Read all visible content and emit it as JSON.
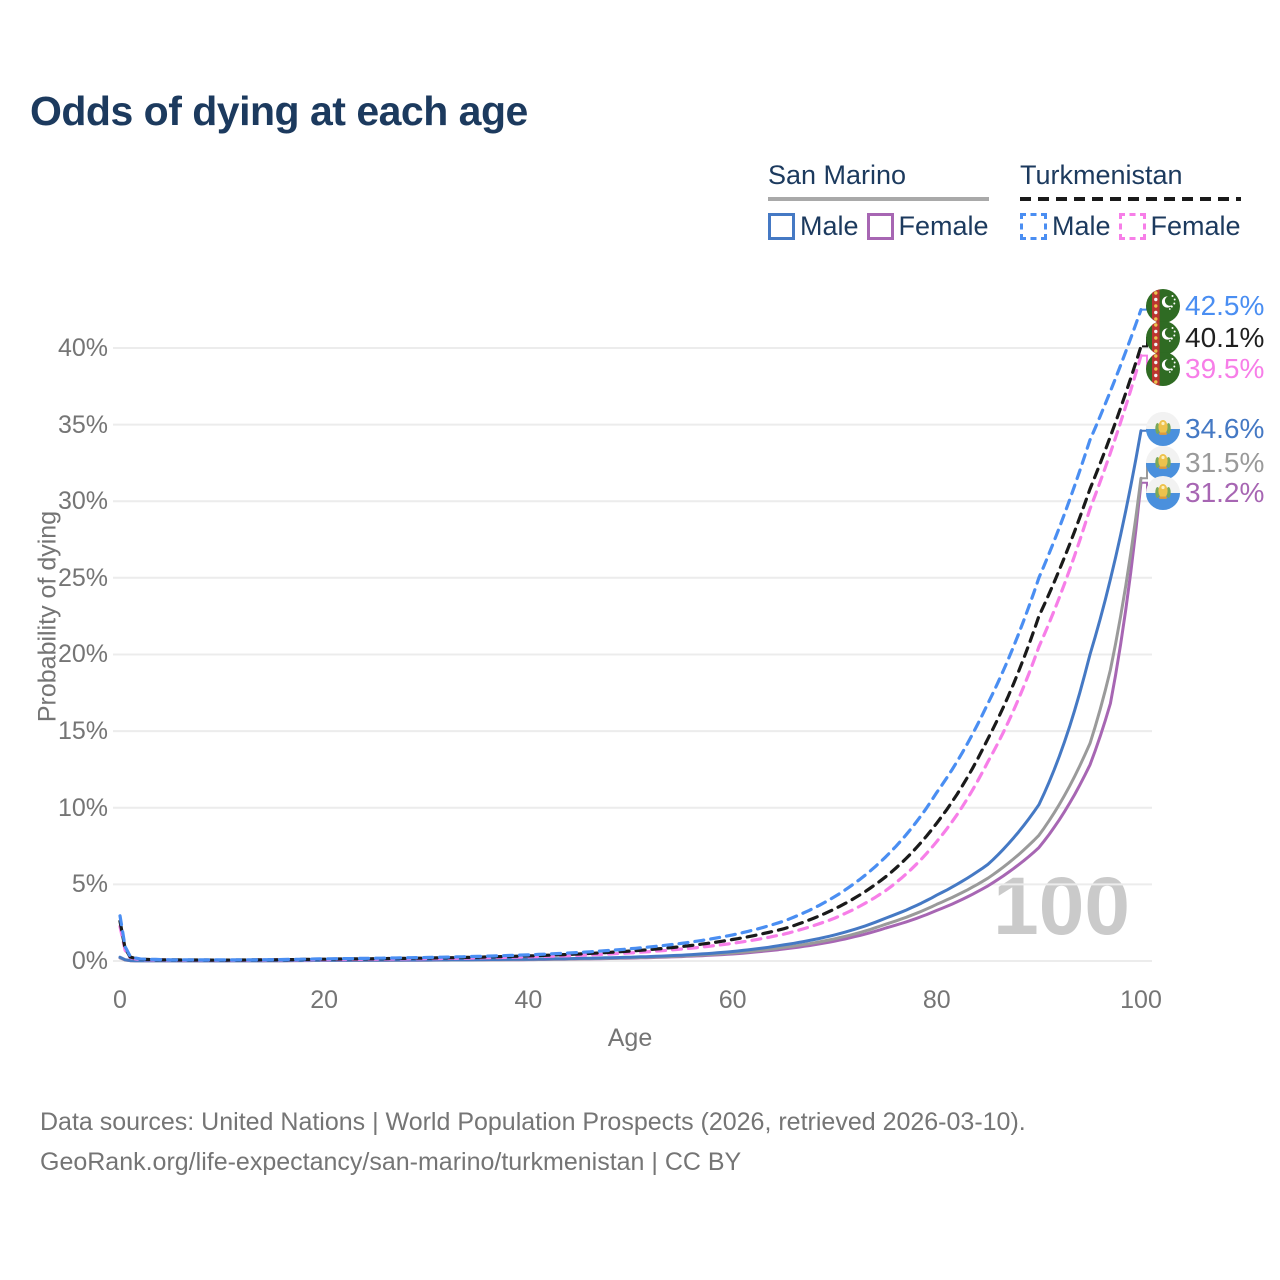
{
  "title": "Odds of dying at each age",
  "legend": {
    "groups": [
      {
        "name": "San Marino",
        "line_style": "solid",
        "rule_color": "#a9a9a9",
        "items": [
          {
            "label": "Male",
            "color": "#4579c4",
            "style": "solid"
          },
          {
            "label": "Female",
            "color": "#a766b3",
            "style": "solid"
          }
        ]
      },
      {
        "name": "Turkmenistan",
        "line_style": "dashed",
        "rule_color": "#1a1a1a",
        "items": [
          {
            "label": "Male",
            "color": "#4a8ef2",
            "style": "dashed"
          },
          {
            "label": "Female",
            "color": "#f77ee8",
            "style": "dashed"
          }
        ]
      }
    ]
  },
  "axes": {
    "y_title": "Probability of dying",
    "x_title": "Age",
    "y_ticks": [
      {
        "label": "0%",
        "value": 0
      },
      {
        "label": "5%",
        "value": 5
      },
      {
        "label": "10%",
        "value": 10
      },
      {
        "label": "15%",
        "value": 15
      },
      {
        "label": "20%",
        "value": 20
      },
      {
        "label": "25%",
        "value": 25
      },
      {
        "label": "30%",
        "value": 30
      },
      {
        "label": "35%",
        "value": 35
      },
      {
        "label": "40%",
        "value": 40
      }
    ],
    "x_ticks": [
      {
        "label": "0",
        "value": 0
      },
      {
        "label": "20",
        "value": 20
      },
      {
        "label": "40",
        "value": 40
      },
      {
        "label": "60",
        "value": 60
      },
      {
        "label": "80",
        "value": 80
      },
      {
        "label": "100",
        "value": 100
      }
    ]
  },
  "watermark": "100",
  "end_labels": [
    {
      "series": "tm_male",
      "value": "42.5%",
      "color": "#4a8ef2",
      "flag": "turkmenistan"
    },
    {
      "series": "tm_total",
      "value": "40.1%",
      "color": "#1f1f1f",
      "flag": "turkmenistan"
    },
    {
      "series": "tm_female",
      "value": "39.5%",
      "color": "#f77ee8",
      "flag": "turkmenistan"
    },
    {
      "series": "sm_male",
      "value": "34.6%",
      "color": "#4579c4",
      "flag": "san-marino"
    },
    {
      "series": "sm_total",
      "value": "31.5%",
      "color": "#9a9a9a",
      "flag": "san-marino"
    },
    {
      "series": "sm_female",
      "value": "31.2%",
      "color": "#a766b3",
      "flag": "san-marino"
    }
  ],
  "footer": {
    "line1": "Data sources: United Nations | World Population Prospects (2026, retrieved 2026-03-10).",
    "line2": "GeoRank.org/life-expectancy/san-marino/turkmenistan | CC BY"
  },
  "chart_data": {
    "type": "line",
    "title": "Odds of dying at each age",
    "xlabel": "Age",
    "ylabel": "Probability of dying",
    "xlim": [
      0,
      100
    ],
    "ylim": [
      0,
      43.5
    ],
    "grid": "horizontal-only",
    "legend_position": "top-right",
    "y_tick_percent": [
      0,
      5,
      10,
      15,
      20,
      25,
      30,
      35,
      40
    ],
    "x_tick_ages": [
      0,
      20,
      40,
      60,
      80,
      100
    ],
    "note": "points are [age, probability_of_dying_percent]; curves interpolated exponentially between anchor points",
    "series": [
      {
        "id": "tm_male",
        "name": "Turkmenistan Male",
        "country": "Turkmenistan",
        "sex": "male",
        "style": "dashed",
        "color": "#4a8ef2",
        "end_value_pct": 42.5,
        "points": [
          [
            0,
            2.95
          ],
          [
            1,
            0.3
          ],
          [
            2,
            0.13
          ],
          [
            5,
            0.08
          ],
          [
            10,
            0.07
          ],
          [
            15,
            0.09
          ],
          [
            20,
            0.14
          ],
          [
            25,
            0.18
          ],
          [
            30,
            0.23
          ],
          [
            35,
            0.3
          ],
          [
            40,
            0.4
          ],
          [
            45,
            0.56
          ],
          [
            50,
            0.8
          ],
          [
            55,
            1.15
          ],
          [
            60,
            1.7
          ],
          [
            65,
            2.6
          ],
          [
            70,
            4.2
          ],
          [
            75,
            6.8
          ],
          [
            80,
            11.0
          ],
          [
            85,
            16.8
          ],
          [
            90,
            25.0
          ],
          [
            95,
            34.0
          ],
          [
            100,
            42.5
          ]
        ]
      },
      {
        "id": "tm_total",
        "name": "Turkmenistan",
        "country": "Turkmenistan",
        "sex": "both",
        "style": "dashed",
        "color": "#1a1a1a",
        "end_value_pct": 40.1,
        "points": [
          [
            0,
            2.6
          ],
          [
            1,
            0.26
          ],
          [
            2,
            0.11
          ],
          [
            5,
            0.07
          ],
          [
            10,
            0.06
          ],
          [
            15,
            0.08
          ],
          [
            20,
            0.12
          ],
          [
            25,
            0.15
          ],
          [
            30,
            0.19
          ],
          [
            35,
            0.25
          ],
          [
            40,
            0.33
          ],
          [
            45,
            0.46
          ],
          [
            50,
            0.65
          ],
          [
            55,
            0.94
          ],
          [
            60,
            1.4
          ],
          [
            65,
            2.1
          ],
          [
            70,
            3.4
          ],
          [
            75,
            5.5
          ],
          [
            80,
            9.0
          ],
          [
            85,
            14.5
          ],
          [
            90,
            22.5
          ],
          [
            95,
            30.8
          ],
          [
            100,
            40.1
          ]
        ]
      },
      {
        "id": "tm_female",
        "name": "Turkmenistan Female",
        "country": "Turkmenistan",
        "sex": "female",
        "style": "dashed",
        "color": "#f77ee8",
        "end_value_pct": 39.5,
        "points": [
          [
            0,
            2.25
          ],
          [
            1,
            0.22
          ],
          [
            2,
            0.09
          ],
          [
            5,
            0.06
          ],
          [
            10,
            0.05
          ],
          [
            15,
            0.07
          ],
          [
            20,
            0.09
          ],
          [
            25,
            0.12
          ],
          [
            30,
            0.15
          ],
          [
            35,
            0.2
          ],
          [
            40,
            0.27
          ],
          [
            45,
            0.37
          ],
          [
            50,
            0.53
          ],
          [
            55,
            0.78
          ],
          [
            60,
            1.15
          ],
          [
            65,
            1.75
          ],
          [
            70,
            2.8
          ],
          [
            75,
            4.6
          ],
          [
            80,
            7.8
          ],
          [
            85,
            13.0
          ],
          [
            90,
            20.5
          ],
          [
            95,
            29.5
          ],
          [
            100,
            39.5
          ]
        ]
      },
      {
        "id": "sm_male",
        "name": "San Marino Male",
        "country": "San Marino",
        "sex": "male",
        "style": "solid",
        "color": "#4579c4",
        "end_value_pct": 34.6,
        "points": [
          [
            0,
            0.25
          ],
          [
            1,
            0.03
          ],
          [
            2,
            0.015
          ],
          [
            5,
            0.012
          ],
          [
            10,
            0.012
          ],
          [
            15,
            0.025
          ],
          [
            20,
            0.05
          ],
          [
            25,
            0.06
          ],
          [
            30,
            0.07
          ],
          [
            35,
            0.09
          ],
          [
            40,
            0.12
          ],
          [
            45,
            0.17
          ],
          [
            50,
            0.25
          ],
          [
            55,
            0.38
          ],
          [
            60,
            0.62
          ],
          [
            65,
            1.05
          ],
          [
            70,
            1.7
          ],
          [
            75,
            2.8
          ],
          [
            80,
            4.3
          ],
          [
            85,
            6.3
          ],
          [
            90,
            10.2
          ],
          [
            95,
            20.0
          ],
          [
            100,
            34.6
          ]
        ]
      },
      {
        "id": "sm_total",
        "name": "San Marino",
        "country": "San Marino",
        "sex": "both",
        "style": "solid",
        "color": "#9a9a9a",
        "end_value_pct": 31.5,
        "points": [
          [
            0,
            0.22
          ],
          [
            1,
            0.025
          ],
          [
            2,
            0.013
          ],
          [
            5,
            0.01
          ],
          [
            10,
            0.01
          ],
          [
            15,
            0.02
          ],
          [
            20,
            0.04
          ],
          [
            25,
            0.05
          ],
          [
            30,
            0.06
          ],
          [
            35,
            0.075
          ],
          [
            40,
            0.1
          ],
          [
            45,
            0.14
          ],
          [
            50,
            0.21
          ],
          [
            55,
            0.32
          ],
          [
            60,
            0.52
          ],
          [
            65,
            0.88
          ],
          [
            70,
            1.45
          ],
          [
            75,
            2.4
          ],
          [
            80,
            3.7
          ],
          [
            85,
            5.4
          ],
          [
            90,
            8.2
          ],
          [
            95,
            14.2
          ],
          [
            97,
            19.0
          ],
          [
            100,
            31.5
          ]
        ]
      },
      {
        "id": "sm_female",
        "name": "San Marino Female",
        "country": "San Marino",
        "sex": "female",
        "style": "solid",
        "color": "#a766b3",
        "end_value_pct": 31.2,
        "points": [
          [
            0,
            0.2
          ],
          [
            1,
            0.02
          ],
          [
            2,
            0.012
          ],
          [
            5,
            0.009
          ],
          [
            10,
            0.009
          ],
          [
            15,
            0.018
          ],
          [
            20,
            0.035
          ],
          [
            25,
            0.045
          ],
          [
            30,
            0.055
          ],
          [
            35,
            0.07
          ],
          [
            40,
            0.09
          ],
          [
            45,
            0.13
          ],
          [
            50,
            0.19
          ],
          [
            55,
            0.29
          ],
          [
            60,
            0.46
          ],
          [
            65,
            0.78
          ],
          [
            70,
            1.3
          ],
          [
            75,
            2.15
          ],
          [
            80,
            3.3
          ],
          [
            85,
            4.9
          ],
          [
            90,
            7.4
          ],
          [
            95,
            12.8
          ],
          [
            97,
            16.8
          ],
          [
            100,
            31.2
          ]
        ]
      }
    ]
  }
}
